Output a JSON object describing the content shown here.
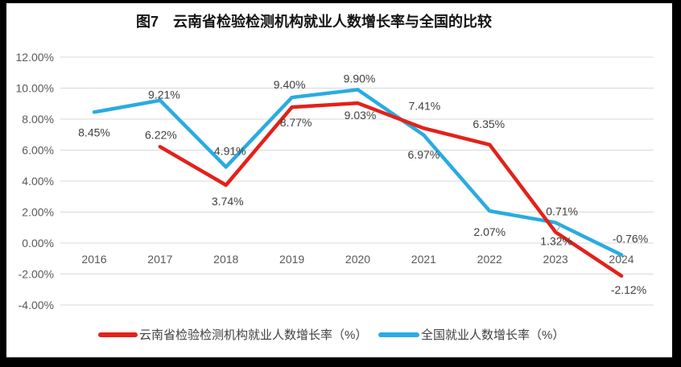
{
  "window": {
    "outer_background": "#000000",
    "panel_background": "#ffffff"
  },
  "chart_data": {
    "type": "line",
    "title": "图7　云南省检验检测机构就业人数增长率与全国的比较",
    "categories": [
      "2016",
      "2017",
      "2018",
      "2019",
      "2020",
      "2021",
      "2022",
      "2023",
      "2024"
    ],
    "series": [
      {
        "key": "yunnan",
        "name": "云南省检验检测机构就业人数增长率（%）",
        "color": "#e32119",
        "values": [
          null,
          6.22,
          3.74,
          8.77,
          9.03,
          7.41,
          6.35,
          0.71,
          -2.12
        ],
        "labels": [
          "",
          "6.22%",
          "3.74%",
          "8.77%",
          "9.03%",
          "7.41%",
          "6.35%",
          "0.71%",
          "-2.12%"
        ]
      },
      {
        "key": "national",
        "name": "全国就业人数增长率（%）",
        "color": "#29abe2",
        "values": [
          8.45,
          9.21,
          4.91,
          9.4,
          9.9,
          6.97,
          2.07,
          1.32,
          -0.76
        ],
        "labels": [
          "8.45%",
          "9.21%",
          "4.91%",
          "9.40%",
          "9.90%",
          "6.97%",
          "2.07%",
          "1.32%",
          "-0.76%"
        ]
      }
    ],
    "y_axis": {
      "min": -4,
      "max": 12,
      "ticks": [
        12,
        10,
        8,
        6,
        4,
        2,
        0,
        -2,
        -4
      ],
      "tick_labels": [
        "12.00%",
        "10.00%",
        "8.00%",
        "6.00%",
        "4.00%",
        "2.00%",
        "0.00%",
        "-2.00%",
        "-4.00%"
      ]
    },
    "grid": true,
    "legend_position": "bottom"
  },
  "colors": {
    "gridline": "#d9d9d9",
    "leader_line": "#a8a8a8"
  }
}
